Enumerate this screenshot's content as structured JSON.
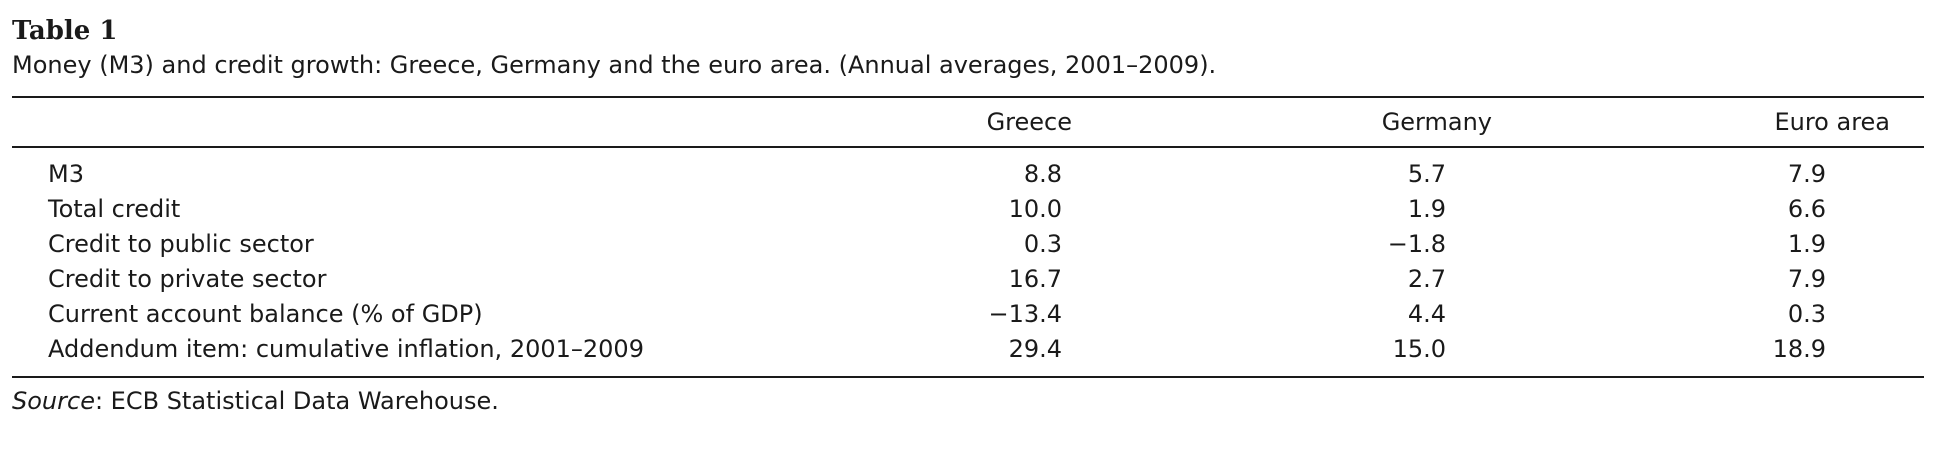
{
  "table_label": "Table 1",
  "caption": "Money (M3) and credit growth: Greece, Germany and the euro area. (Annual averages, 2001–2009).",
  "columns": [
    "Greece",
    "Germany",
    "Euro area"
  ],
  "rows": [
    {
      "label": "M3",
      "values": [
        "8.8",
        "5.7",
        "7.9"
      ]
    },
    {
      "label": "Total credit",
      "values": [
        "10.0",
        "1.9",
        "6.6"
      ]
    },
    {
      "label": "Credit to public sector",
      "values": [
        "0.3",
        "−1.8",
        "1.9"
      ]
    },
    {
      "label": "Credit to private sector",
      "values": [
        "16.7",
        "2.7",
        "7.9"
      ]
    },
    {
      "label": "Current account balance (% of GDP)",
      "values": [
        "−13.4",
        "4.4",
        "0.3"
      ]
    },
    {
      "label": "Addendum item: cumulative inflation, 2001–2009",
      "values": [
        "29.4",
        "15.0",
        "18.9"
      ]
    }
  ],
  "source": {
    "prefix": "Source",
    "text": ": ECB Statistical Data Warehouse."
  }
}
